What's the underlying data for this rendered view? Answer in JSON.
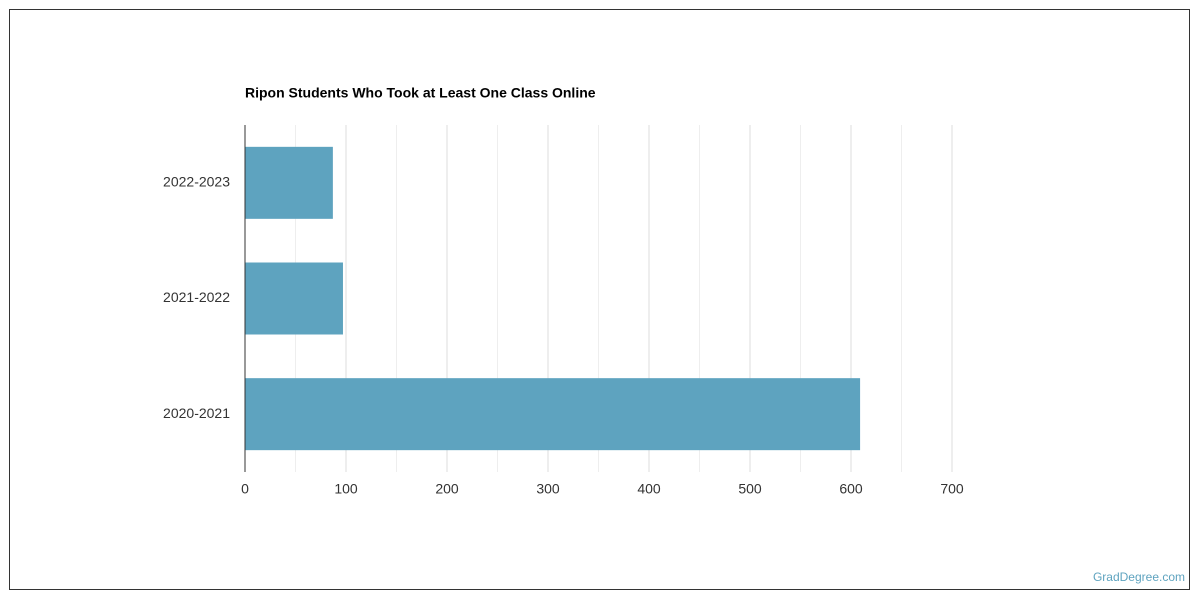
{
  "chart_data": {
    "type": "bar",
    "orientation": "horizontal",
    "title": "Ripon Students Who Took at Least One Class Online",
    "categories": [
      "2022-2023",
      "2021-2022",
      "2020-2021"
    ],
    "values": [
      87,
      97,
      609
    ],
    "color": "#5ea3bf",
    "xlim": [
      0,
      700
    ],
    "xticks": [
      0,
      100,
      200,
      300,
      400,
      500,
      600,
      700
    ],
    "minor_gridlines": [
      50,
      150,
      250,
      350,
      450,
      550,
      650
    ],
    "grid": true,
    "source": "GradDegree.com"
  }
}
